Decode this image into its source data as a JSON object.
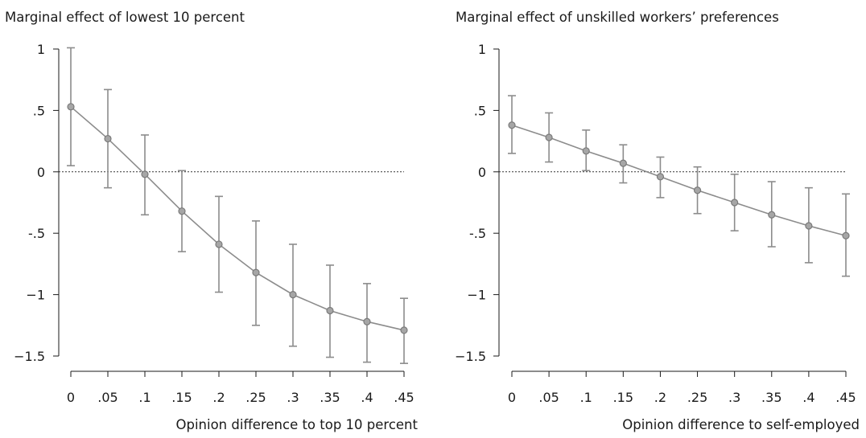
{
  "chart_data": [
    {
      "type": "line",
      "title": "Marginal effect of lowest 10 percent",
      "xlabel": "Opinion difference to top 10 percent",
      "ylabel": "",
      "x": [
        0,
        0.05,
        0.1,
        0.15,
        0.2,
        0.25,
        0.3,
        0.35,
        0.4,
        0.45
      ],
      "x_tick_labels": [
        "0",
        ".05",
        ".1",
        ".15",
        ".2",
        ".25",
        ".3",
        ".35",
        ".4",
        ".45"
      ],
      "y_ticks": [
        1,
        0.5,
        0,
        -0.5,
        -1,
        -1.5
      ],
      "y_tick_labels": [
        "1",
        ".5",
        "0",
        "-.5",
        "−1",
        "−1.5"
      ],
      "ylim": [
        -1.5,
        1
      ],
      "reference_line": 0,
      "series": [
        {
          "values": [
            0.53,
            0.27,
            -0.02,
            -0.32,
            -0.59,
            -0.82,
            -1.0,
            -1.13,
            -1.22,
            -1.29
          ],
          "ci_upper": [
            1.01,
            0.67,
            0.3,
            0.01,
            -0.2,
            -0.4,
            -0.59,
            -0.76,
            -0.91,
            -1.03
          ],
          "ci_lower": [
            0.05,
            -0.13,
            -0.35,
            -0.65,
            -0.98,
            -1.25,
            -1.42,
            -1.51,
            -1.55,
            -1.56
          ],
          "color": "#8c8c8c"
        }
      ]
    },
    {
      "type": "line",
      "title": "Marginal effect of unskilled workers’ preferences",
      "xlabel": "Opinion difference to self-employed",
      "ylabel": "",
      "x": [
        0,
        0.05,
        0.1,
        0.15,
        0.2,
        0.25,
        0.3,
        0.35,
        0.4,
        0.45
      ],
      "x_tick_labels": [
        "0",
        ".05",
        ".1",
        ".15",
        ".2",
        ".25",
        ".3",
        ".35",
        ".4",
        ".45"
      ],
      "y_ticks": [
        1,
        0.5,
        0,
        -0.5,
        -1,
        -1.5
      ],
      "y_tick_labels": [
        "1",
        ".5",
        "0",
        "-.5",
        "−1",
        "−1.5"
      ],
      "ylim": [
        -1.5,
        1
      ],
      "reference_line": 0,
      "series": [
        {
          "values": [
            0.38,
            0.28,
            0.17,
            0.07,
            -0.04,
            -0.15,
            -0.25,
            -0.35,
            -0.44,
            -0.52
          ],
          "ci_upper": [
            0.62,
            0.48,
            0.34,
            0.22,
            0.12,
            0.04,
            -0.02,
            -0.08,
            -0.13,
            -0.18
          ],
          "ci_lower": [
            0.15,
            0.08,
            0.01,
            -0.09,
            -0.21,
            -0.34,
            -0.48,
            -0.61,
            -0.74,
            -0.85
          ],
          "color": "#8c8c8c"
        }
      ]
    }
  ]
}
